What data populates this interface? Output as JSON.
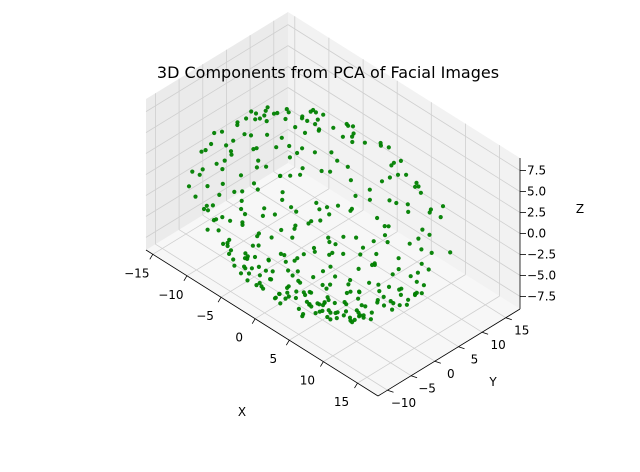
{
  "chart_data": {
    "type": "scatter",
    "projection": "3d",
    "title": "3D Components from PCA of Facial Images",
    "xlabel": "X",
    "ylabel": "Y",
    "zlabel": "Z",
    "xlim": [
      -16,
      18
    ],
    "ylim": [
      -12,
      18
    ],
    "zlim": [
      -9,
      9
    ],
    "xticks": [
      -15,
      -10,
      -5,
      0,
      5,
      10,
      15
    ],
    "yticks": [
      -10,
      -5,
      0,
      5,
      10,
      15
    ],
    "zticks": [
      -7.5,
      -5.0,
      -2.5,
      0.0,
      2.5,
      5.0,
      7.5
    ],
    "xtick_labels": [
      "−15",
      "−10",
      "−5",
      "0",
      "5",
      "10",
      "15"
    ],
    "ytick_labels": [
      "−10",
      "−5",
      "0",
      "5",
      "10",
      "15"
    ],
    "ztick_labels": [
      "−7.5",
      "−5.0",
      "−2.5",
      "0.0",
      "2.5",
      "5.0",
      "7.5"
    ],
    "grid": true,
    "marker_color": "#008000",
    "pane_colors": {
      "back": "#f2f2f2",
      "side": "#ebebeb",
      "floor": "#f7f7f7"
    },
    "point_count": 400,
    "points": [
      [
        -6.2,
        -3.1,
        -7.9
      ],
      [
        3.4,
        -7.8,
        -4.2
      ],
      [
        11.5,
        5.2,
        -6.1
      ],
      [
        -1.3,
        0.4,
        8.2
      ],
      [
        7.9,
        -2.2,
        6.3
      ],
      [
        -11.2,
        4.5,
        -2.4
      ],
      [
        0.6,
        12.9,
        -5.3
      ],
      [
        4.8,
        3.1,
        -8.6
      ],
      [
        -7.5,
        8.7,
        3.9
      ],
      [
        12.4,
        -4.6,
        1.2
      ],
      [
        -3.3,
        -10.1,
        2.7
      ],
      [
        9.1,
        10.2,
        -1.4
      ],
      [
        1.7,
        -3.9,
        -8.1
      ],
      [
        -9.8,
        -1.6,
        5.8
      ],
      [
        6.5,
        7.4,
        5.9
      ],
      [
        -0.9,
        5.6,
        -7.7
      ],
      [
        14.2,
        1.3,
        -3.5
      ],
      [
        -5.1,
        -6.8,
        -6.2
      ],
      [
        2.9,
        14.6,
        2.1
      ],
      [
        8.3,
        -9.3,
        -3.8
      ],
      [
        -12.1,
        0.8,
        1.6
      ],
      [
        5.6,
        -0.5,
        8.0
      ],
      [
        -2.4,
        10.8,
        5.1
      ],
      [
        10.7,
        -6.4,
        -5.6
      ],
      [
        0.2,
        -11.5,
        -2.9
      ],
      [
        -8.6,
        6.1,
        -5.5
      ],
      [
        13.1,
        8.3,
        2.8
      ],
      [
        3.8,
        1.9,
        -8.8
      ],
      [
        -4.7,
        -2.7,
        7.3
      ],
      [
        7.2,
        12.1,
        -4.1
      ],
      [
        -10.3,
        -5.4,
        -4.7
      ],
      [
        1.1,
        7.2,
        7.0
      ],
      [
        11.9,
        -1.8,
        4.6
      ],
      [
        -6.8,
        3.3,
        -7.2
      ],
      [
        4.4,
        -12.2,
        0.9
      ],
      [
        -1.8,
        -7.1,
        6.5
      ],
      [
        9.7,
        4.8,
        -7.0
      ],
      [
        -13.4,
        2.2,
        -0.8
      ],
      [
        6.1,
        -4.9,
        -7.6
      ],
      [
        0.8,
        15.3,
        -1.2
      ],
      [
        -3.9,
        0.1,
        -8.4
      ],
      [
        12.8,
        3.7,
        -4.8
      ],
      [
        -7.9,
        -8.2,
        0.4
      ],
      [
        2.3,
        -5.3,
        7.8
      ],
      [
        8.8,
        9.4,
        4.3
      ],
      [
        -11.7,
        7.3,
        1.9
      ],
      [
        5.1,
        2.6,
        -8.2
      ],
      [
        -0.4,
        -13.1,
        -1.7
      ],
      [
        10.2,
        -8.1,
        2.6
      ],
      [
        -5.6,
        11.9,
        -2.6
      ],
      [
        3.2,
        -1.1,
        -8.9
      ],
      [
        -9.2,
        2.9,
        -6.6
      ],
      [
        14.8,
        -2.9,
        -1.1
      ],
      [
        -2.1,
        6.7,
        -7.4
      ],
      [
        7.6,
        -10.7,
        -0.6
      ],
      [
        -6.9,
        -4.3,
        6.8
      ],
      [
        1.9,
        10.3,
        -6.5
      ],
      [
        11.3,
        6.9,
        -3.2
      ],
      [
        -12.6,
        -2.5,
        3.4
      ],
      [
        4.9,
        -7.2,
        -6.7
      ],
      [
        -1.2,
        2.4,
        8.6
      ],
      [
        9.4,
        -3.6,
        -6.8
      ],
      [
        -8.1,
        9.6,
        -0.3
      ],
      [
        6.8,
        0.7,
        -8.3
      ],
      [
        -4.2,
        -11.8,
        -2.2
      ],
      [
        13.6,
        -5.7,
        -2.0
      ],
      [
        0.4,
        -2.3,
        -9.0
      ],
      [
        -10.8,
        5.8,
        4.1
      ],
      [
        8.1,
        13.2,
        -0.9
      ],
      [
        -3.6,
        -8.9,
        -5.9
      ],
      [
        2.6,
        4.3,
        -8.7
      ],
      [
        12.2,
        -0.4,
        -4.9
      ],
      [
        -6.4,
        1.2,
        7.6
      ],
      [
        5.4,
        -11.1,
        -3.3
      ],
      [
        -9.6,
        -7.1,
        -2.1
      ],
      [
        1.3,
        8.9,
        -7.1
      ],
      [
        10.9,
        2.1,
        5.5
      ],
      [
        -2.8,
        -4.6,
        -8.3
      ],
      [
        7.1,
        -6.6,
        5.2
      ],
      [
        -12.9,
        3.6,
        -3.9
      ],
      [
        4.1,
        11.4,
        3.6
      ],
      [
        -0.7,
        -1.5,
        -8.7
      ],
      [
        9.9,
        8.1,
        -5.4
      ],
      [
        -7.2,
        -2.1,
        -7.4
      ],
      [
        3.6,
        -9.6,
        5.3
      ],
      [
        -4.9,
        7.9,
        6.2
      ],
      [
        14.5,
        4.4,
        0.6
      ],
      [
        -1.6,
        -12.4,
        1.8
      ],
      [
        6.3,
        -1.9,
        -8.4
      ],
      [
        -10.5,
        -3.8,
        -5.1
      ],
      [
        2.1,
        3.5,
        8.4
      ],
      [
        11.7,
        -7.4,
        -3.6
      ],
      [
        -5.3,
        9.2,
        -6.0
      ],
      [
        8.6,
        1.4,
        -7.3
      ],
      [
        -8.9,
        -9.4,
        -1.0
      ],
      [
        0.9,
        -6.2,
        -7.9
      ],
      [
        12.9,
        10.6,
        -2.3
      ],
      [
        -3.1,
        4.9,
        -8.0
      ],
      [
        5.8,
        -13.4,
        0.2
      ],
      [
        -11.4,
        1.7,
        -4.4
      ],
      [
        7.4,
        5.6,
        -7.5
      ],
      [
        -2.6,
        -10.6,
        -4.6
      ],
      [
        10.4,
        -10.1,
        0.7
      ],
      [
        -6.1,
        5.3,
        -7.0
      ],
      [
        3.1,
        -3.3,
        -8.6
      ],
      [
        -9.4,
        10.4,
        -1.8
      ],
      [
        13.3,
        -3.2,
        3.9
      ],
      [
        -0.2,
        9.6,
        -6.9
      ],
      [
        6.9,
        -8.4,
        -5.0
      ],
      [
        -7.7,
        -5.9,
        4.5
      ],
      [
        1.5,
        0.9,
        -9.1
      ],
      [
        9.2,
        7.6,
        -6.0
      ],
      [
        -4.4,
        -3.4,
        -8.5
      ],
      [
        4.6,
        13.7,
        -2.8
      ],
      [
        -12.3,
        -1.1,
        -3.0
      ],
      [
        11.1,
        -5.1,
        -5.3
      ],
      [
        -1.9,
        -8.3,
        -7.0
      ],
      [
        7.8,
        3.9,
        -7.9
      ],
      [
        -8.3,
        2.6,
        6.9
      ],
      [
        0.1,
        -14.2,
        -0.4
      ],
      [
        5.3,
        -4.1,
        -8.0
      ],
      [
        -5.9,
        12.6,
        -0.7
      ],
      [
        12.6,
        1.9,
        -5.7
      ],
      [
        -3.4,
        -6.1,
        -7.6
      ],
      [
        8.4,
        -12.3,
        -1.5
      ],
      [
        -10.1,
        7.8,
        -4.0
      ],
      [
        2.4,
        6.4,
        -8.2
      ],
      [
        -6.6,
        -11.2,
        -0.9
      ],
      [
        10.6,
        12.4,
        1.4
      ],
      [
        -0.6,
        3.2,
        -8.9
      ],
      [
        6.4,
        -10.3,
        -4.3
      ],
      [
        -11.9,
        4.9,
        -4.8
      ],
      [
        3.9,
        -0.8,
        -9.0
      ],
      [
        -2.2,
        11.6,
        -5.2
      ],
      [
        14.1,
        -6.3,
        0.3
      ],
      [
        -7.4,
        -0.6,
        -8.0
      ],
      [
        1.6,
        -7.9,
        -7.2
      ],
      [
        9.6,
        2.8,
        -7.1
      ],
      [
        -4.6,
        8.4,
        -6.7
      ],
      [
        5.9,
        9.8,
        -6.3
      ],
      [
        -9.1,
        -6.6,
        -5.0
      ],
      [
        0.7,
        -4.4,
        -8.8
      ],
      [
        11.4,
        -9.2,
        -2.4
      ],
      [
        -3.8,
        1.8,
        -8.8
      ],
      [
        7.3,
        -3.8,
        -7.7
      ],
      [
        -6.3,
        -9.7,
        -4.1
      ],
      [
        2.7,
        12.3,
        -5.0
      ],
      [
        -13.1,
        -4.2,
        -0.6
      ],
      [
        8.9,
        -0.2,
        -7.8
      ],
      [
        -1.4,
        -2.9,
        -9.0
      ],
      [
        4.3,
        -14.5,
        -0.3
      ],
      [
        -8.4,
        11.1,
        2.3
      ],
      [
        12.1,
        6.2,
        -5.1
      ],
      [
        -5.4,
        -1.4,
        -8.4
      ],
      [
        3.3,
        -11.6,
        -4.5
      ],
      [
        -10.6,
        0.3,
        -5.6
      ],
      [
        6.6,
        4.7,
        -8.1
      ],
      [
        -0.3,
        -9.9,
        -6.3
      ],
      [
        9.8,
        -6.1,
        -5.9
      ],
      [
        -7.1,
        6.9,
        -6.4
      ],
      [
        1.2,
        2.1,
        -9.2
      ],
      [
        13.9,
        -1.5,
        -3.9
      ],
      [
        -4.1,
        -7.4,
        -7.3
      ],
      [
        5.7,
        -2.8,
        -8.5
      ],
      [
        -11.1,
        -8.6,
        -1.3
      ],
      [
        8.2,
        11.3,
        -4.6
      ],
      [
        -2.9,
        7.6,
        -7.6
      ],
      [
        10.1,
        -11.9,
        -1.9
      ],
      [
        -6.7,
        -3.9,
        -7.8
      ],
      [
        2.8,
        -6.8,
        -8.2
      ],
      [
        -9.7,
        3.9,
        -6.3
      ],
      [
        7.7,
        -8.9,
        -5.2
      ],
      [
        -1.1,
        13.8,
        -3.1
      ],
      [
        4.5,
        0.4,
        -9.0
      ],
      [
        -8.8,
        -4.8,
        -6.6
      ],
      [
        11.8,
        3.3,
        -6.0
      ],
      [
        -3.2,
        -12.9,
        -2.6
      ],
      [
        6.2,
        -5.7,
        -7.8
      ],
      [
        -5.8,
        4.2,
        -7.9
      ],
      [
        0.5,
        -1.2,
        -9.3
      ],
      [
        9.3,
        -2.5,
        -7.4
      ],
      [
        -12.7,
        6.6,
        -1.6
      ],
      [
        3.5,
        8.2,
        -7.6
      ],
      [
        -7.8,
        -10.8,
        -2.8
      ],
      [
        8.7,
        -4.4,
        -7.4
      ],
      [
        -0.8,
        -5.8,
        -8.6
      ],
      [
        12.3,
        -7.9,
        -3.4
      ],
      [
        -4.8,
        10.1,
        -5.8
      ],
      [
        5.2,
        -12.7,
        -3.0
      ],
      [
        -10.4,
        -2.3,
        -6.0
      ],
      [
        2.2,
        -3.7,
        -9.0
      ],
      [
        10.8,
        9.1,
        -4.9
      ],
      [
        -6.2,
        -7.7,
        -6.6
      ],
      [
        4.7,
        5.3,
        -8.3
      ],
      [
        -2.5,
        -0.5,
        -9.1
      ],
      [
        7.5,
        -11.4,
        -3.7
      ],
      [
        -9.3,
        8.8,
        -3.9
      ],
      [
        13.4,
        -4.1,
        -3.3
      ],
      [
        -3.7,
        3.6,
        -8.6
      ],
      [
        1.8,
        -10.4,
        -6.2
      ],
      [
        -5.2,
        -5.2,
        -8.0
      ],
      [
        6.7,
        1.6,
        -8.8
      ],
      [
        -11.6,
        -6.1,
        -3.9
      ],
      [
        9.5,
        -8.7,
        -4.6
      ],
      [
        -1.7,
        9.1,
        -7.4
      ],
      [
        4.2,
        -8.1,
        -7.9
      ],
      [
        -8.2,
        0.6,
        -7.4
      ],
      [
        11.6,
        0.2,
        -6.2
      ],
      [
        -4.3,
        -10.2,
        -5.5
      ],
      [
        2.5,
        -0.3,
        -9.2
      ],
      [
        -7.6,
        12.4,
        1.1
      ],
      [
        8.5,
        -7.0,
        -6.3
      ],
      [
        -0.1,
        -7.5,
        -8.1
      ],
      [
        12.7,
        4.9,
        -5.3
      ],
      [
        -5.7,
        -0.9,
        -8.8
      ],
      [
        5.5,
        -9.8,
        -6.4
      ],
      [
        -10.2,
        9.9,
        -1.2
      ],
      [
        3.7,
        2.8,
        -9.0
      ],
      [
        -2.3,
        -13.8,
        -1.4
      ],
      [
        9.0,
        5.9,
        -7.0
      ],
      [
        -6.5,
        -12.6,
        0.8
      ],
      [
        1.4,
        -8.7,
        -7.6
      ],
      [
        -12.4,
        -7.4,
        0.6
      ],
      [
        7.9,
        -1.2,
        -8.3
      ],
      [
        -3.5,
        -3.8,
        -8.9
      ],
      [
        10.3,
        -12.6,
        0.5
      ],
      [
        -8.7,
        4.7,
        -6.8
      ],
      [
        4.0,
        -5.0,
        -8.7
      ],
      [
        -1.5,
        5.8,
        -8.3
      ],
      [
        6.0,
        -13.9,
        -1.6
      ],
      [
        -9.9,
        -0.4,
        -6.9
      ],
      [
        11.0,
        -3.4,
        -6.4
      ],
      [
        -4.5,
        -8.5,
        -7.1
      ],
      [
        2.9,
        9.4,
        -7.2
      ],
      [
        -7.3,
        2.0,
        -7.9
      ],
      [
        8.0,
        -9.9,
        -4.8
      ],
      [
        -0.5,
        -11.0,
        -5.6
      ],
      [
        13.0,
        -9.0,
        -1.0
      ],
      [
        -5.5,
        7.2,
        -7.1
      ],
      [
        3.0,
        -2.0,
        -9.3
      ],
      [
        -11.3,
        -9.7,
        0.2
      ],
      [
        9.7,
        -5.5,
        -6.7
      ],
      [
        -2.7,
        0.9,
        -9.2
      ],
      [
        6.6,
        8.8,
        -6.9
      ],
      [
        -8.0,
        -6.3,
        -6.4
      ],
      [
        1.0,
        -12.1,
        -4.6
      ],
      [
        -13.2,
        0.1,
        -2.1
      ],
      [
        7.0,
        -6.2,
        -7.5
      ],
      [
        -3.0,
        -9.3,
        -6.9
      ],
      [
        10.5,
        7.0,
        -5.8
      ],
      [
        -1.3,
        9.5,
        5.9
      ],
      [
        4.8,
        -1.6,
        8.7
      ],
      [
        -6.0,
        6.6,
        5.6
      ],
      [
        9.0,
        -8.0,
        3.1
      ],
      [
        0.3,
        -5.1,
        8.0
      ],
      [
        -10.9,
        -3.3,
        4.7
      ],
      [
        12.5,
        -2.6,
        4.1
      ],
      [
        -3.0,
        12.8,
        2.6
      ],
      [
        6.3,
        10.8,
        3.5
      ],
      [
        -8.5,
        -7.9,
        3.7
      ],
      [
        2.0,
        -9.1,
        6.1
      ],
      [
        -5.0,
        2.3,
        8.1
      ],
      [
        11.2,
        4.1,
        4.8
      ],
      [
        -12.0,
        6.3,
        2.4
      ],
      [
        7.7,
        -5.6,
        6.2
      ],
      [
        -1.0,
        -12.7,
        3.2
      ],
      [
        3.6,
        6.0,
        7.6
      ],
      [
        -7.0,
        -1.9,
        7.7
      ],
      [
        13.7,
        0.9,
        2.5
      ],
      [
        -4.0,
        -6.6,
        7.3
      ],
      [
        8.6,
        2.4,
        6.8
      ],
      [
        -9.5,
        8.1,
        3.0
      ],
      [
        0.0,
        1.5,
        8.9
      ],
      [
        5.0,
        -10.9,
        3.9
      ],
      [
        -2.0,
        -3.5,
        8.6
      ],
      [
        10.0,
        -10.5,
        1.8
      ],
      [
        -11.5,
        -5.9,
        3.1
      ],
      [
        6.1,
        13.0,
        1.2
      ],
      [
        -6.5,
        10.6,
        3.6
      ],
      [
        2.7,
        -6.4,
        7.6
      ],
      [
        14.4,
        -3.7,
        0.8
      ],
      [
        -8.3,
        -10.1,
        1.9
      ],
      [
        4.2,
        8.5,
        6.7
      ],
      [
        -3.8,
        5.2,
        7.8
      ],
      [
        9.3,
        9.6,
        3.3
      ],
      [
        -13.6,
        -1.7,
        1.3
      ],
      [
        0.9,
        -8.0,
        7.1
      ],
      [
        7.3,
        -2.3,
        7.9
      ],
      [
        -5.6,
        -4.8,
        7.5
      ],
      [
        11.8,
        -6.8,
        2.9
      ],
      [
        -1.9,
        -0.8,
        9.0
      ],
      [
        4.6,
        -13.2,
        1.5
      ],
      [
        -10.0,
        2.6,
        5.3
      ],
      [
        8.1,
        6.5,
        5.9
      ],
      [
        -6.9,
        -8.5,
        5.1
      ],
      [
        1.6,
        12.2,
        4.4
      ],
      [
        12.0,
        -9.6,
        0.4
      ],
      [
        -4.6,
        9.0,
        5.7
      ],
      [
        5.9,
        -7.6,
        6.3
      ],
      [
        -9.0,
        -2.8,
        6.3
      ],
      [
        3.2,
        3.9,
        8.2
      ],
      [
        -12.5,
        4.1,
        2.9
      ],
      [
        10.6,
        1.1,
        6.0
      ],
      [
        -0.8,
        -10.3,
        5.4
      ],
      [
        6.8,
        -12.9,
        2.0
      ],
      [
        -7.5,
        5.5,
        6.1
      ],
      [
        2.3,
        -2.7,
        8.8
      ],
      [
        13.2,
        5.8,
        1.6
      ],
      [
        -3.4,
        -11.5,
        4.2
      ],
      [
        8.9,
        -4.7,
        5.9
      ],
      [
        -10.7,
        -8.3,
        1.4
      ],
      [
        0.6,
        7.8,
        7.4
      ],
      [
        -5.2,
        12.0,
        2.8
      ],
      [
        7.5,
        11.7,
        2.4
      ],
      [
        -8.9,
        0.0,
        7.0
      ],
      [
        4.4,
        -4.3,
        8.2
      ],
      [
        -2.4,
        -7.9,
        7.2
      ],
      [
        11.4,
        8.7,
        2.7
      ],
      [
        -13.0,
        -4.6,
        1.7
      ],
      [
        6.4,
        -9.4,
        5.0
      ],
      [
        -6.3,
        -1.0,
        8.2
      ],
      [
        1.4,
        -13.6,
        2.1
      ],
      [
        9.8,
        -1.9,
        6.7
      ],
      [
        -4.2,
        6.3,
        7.4
      ],
      [
        12.9,
        -5.9,
        1.9
      ],
      [
        -9.8,
        6.8,
        4.0
      ],
      [
        3.9,
        10.6,
        5.6
      ],
      [
        -1.5,
        -5.4,
        8.4
      ],
      [
        7.9,
        -10.8,
        2.6
      ],
      [
        -7.8,
        -6.9,
        5.9
      ]
    ]
  }
}
